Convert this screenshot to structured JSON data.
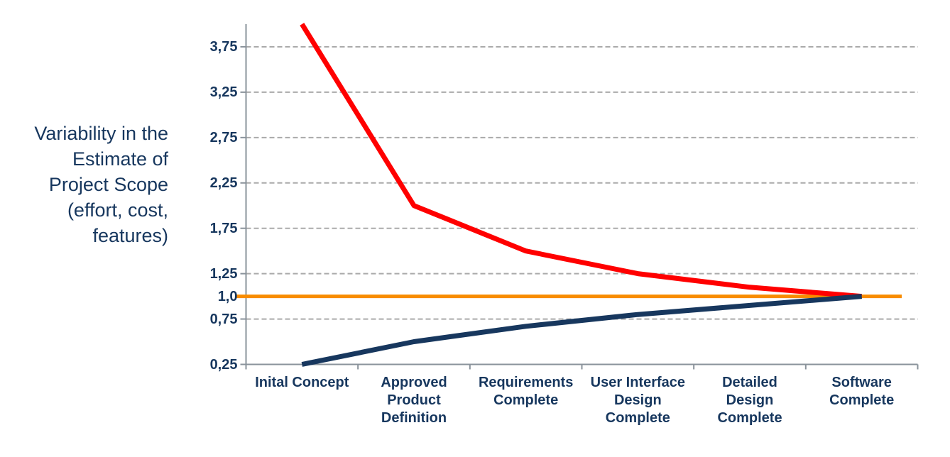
{
  "chart_data": {
    "type": "line",
    "title": "",
    "ylabel": "Variability in the Estimate of Project Scope (effort, cost, features)",
    "ylabel_lines": [
      "Variability in the",
      "Estimate of",
      "Project Scope",
      "(effort, cost,",
      "features)"
    ],
    "categories": [
      "Inital Concept",
      "Approved Product Definition",
      "Requirements Complete",
      "User Interface Design Complete",
      "Detailed Design Complete",
      "Software Complete"
    ],
    "category_lines": [
      [
        "Inital Concept"
      ],
      [
        "Approved",
        "Product",
        "Definition"
      ],
      [
        "Requirements",
        "Complete"
      ],
      [
        "User Interface",
        "Design",
        "Complete"
      ],
      [
        "Detailed",
        "Design",
        "Complete"
      ],
      [
        "Software",
        "Complete"
      ]
    ],
    "series": [
      {
        "name": "upper-estimate-bound",
        "color": "#FF0000",
        "values": [
          4.0,
          2.0,
          1.5,
          1.25,
          1.1,
          1.0
        ]
      },
      {
        "name": "lower-estimate-bound",
        "color": "#17375E",
        "values": [
          0.25,
          0.5,
          0.67,
          0.8,
          0.9,
          1.0
        ]
      }
    ],
    "reference_line": {
      "name": "baseline",
      "value": 1.0,
      "color": "#F88C00"
    },
    "yticks": [
      {
        "label": "3,75",
        "value": 3.75,
        "gridline": true
      },
      {
        "label": "3,25",
        "value": 3.25,
        "gridline": true
      },
      {
        "label": "2,75",
        "value": 2.75,
        "gridline": true
      },
      {
        "label": "2,25",
        "value": 2.25,
        "gridline": true
      },
      {
        "label": "1,75",
        "value": 1.75,
        "gridline": true
      },
      {
        "label": "1,25",
        "value": 1.25,
        "gridline": true
      },
      {
        "label": "1,0",
        "value": 1.0,
        "gridline": false
      },
      {
        "label": "0,75",
        "value": 0.75,
        "gridline": true
      },
      {
        "label": "0,25",
        "value": 0.25,
        "gridline": false
      }
    ],
    "ylim": [
      0.25,
      4.0
    ],
    "grid": "horizontal-dashed",
    "legend": "none",
    "decimal_separator": ",",
    "colors": {
      "upper_line": "#FF0000",
      "lower_line": "#17375E",
      "baseline_line": "#F88C00",
      "grid": "#AAAAAA",
      "axis": "#8A939B",
      "label_text": "#17375E",
      "background": "#FFFFFF"
    }
  }
}
